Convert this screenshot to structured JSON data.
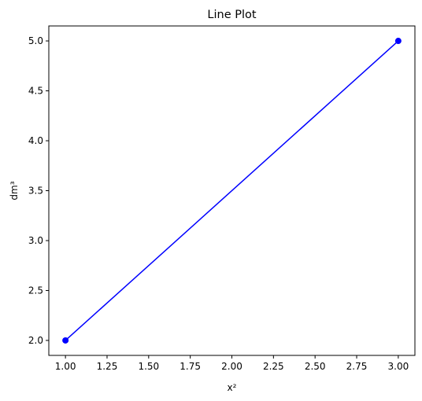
{
  "chart_data": {
    "type": "line",
    "title": "Line Plot",
    "xlabel": "x²",
    "ylabel": "dm³",
    "xlim": [
      0.9,
      3.1
    ],
    "ylim": [
      1.85,
      5.15
    ],
    "x_ticks": [
      "1.00",
      "1.25",
      "1.50",
      "1.75",
      "2.00",
      "2.25",
      "2.50",
      "2.75",
      "3.00"
    ],
    "y_ticks": [
      "2.0",
      "2.5",
      "3.0",
      "3.5",
      "4.0",
      "4.5",
      "5.0"
    ],
    "grid": false,
    "series": [
      {
        "x": [
          1.0,
          3.0
        ],
        "y": [
          2.0,
          5.0
        ],
        "color": "#0000ff",
        "marker": "circle"
      }
    ]
  }
}
